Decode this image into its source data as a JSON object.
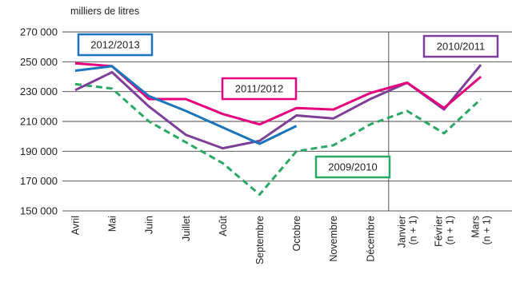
{
  "chart_data": {
    "type": "line",
    "ylabel": "milliers de litres",
    "ylim": [
      150000,
      270000
    ],
    "yticks": [
      "270 000",
      "250 000",
      "230 000",
      "210 000",
      "190 000",
      "170 000",
      "150 000"
    ],
    "categories": [
      "Avril",
      "Mai",
      "Juin",
      "Juillet",
      "Août",
      "Septembre",
      "Octobre",
      "Novembre",
      "Décembre",
      "Janvier (n + 1)",
      "Février (n + 1)",
      "Mars (n + 1)"
    ],
    "category_lines": [
      [
        "Avril"
      ],
      [
        "Mai"
      ],
      [
        "Juin"
      ],
      [
        "Juillet"
      ],
      [
        "Août"
      ],
      [
        "Septembre"
      ],
      [
        "Octobre"
      ],
      [
        "Novembre"
      ],
      [
        "Décembre"
      ],
      [
        "Janvier",
        "(n + 1)"
      ],
      [
        "Février",
        "(n + 1)"
      ],
      [
        "Mars",
        "(n + 1)"
      ]
    ],
    "series": [
      {
        "name": "2012/2013",
        "color": "#1b75bc",
        "dashed": false,
        "values": [
          244000,
          247000,
          227000,
          217000,
          206000,
          195000,
          207000,
          null,
          null,
          null,
          null,
          null
        ]
      },
      {
        "name": "2011/2012",
        "color": "#e6007e",
        "dashed": false,
        "values": [
          249000,
          247000,
          225000,
          225000,
          215000,
          208000,
          219000,
          218000,
          229000,
          236000,
          219000,
          240000
        ]
      },
      {
        "name": "2010/2011",
        "color": "#7d3f98",
        "dashed": false,
        "values": [
          231000,
          243000,
          220000,
          201000,
          192000,
          197000,
          214000,
          212000,
          225000,
          236000,
          218000,
          248000
        ]
      },
      {
        "name": "2009/2010",
        "color": "#2aa864",
        "dashed": true,
        "values": [
          235000,
          232000,
          210000,
          196000,
          182000,
          161000,
          190000,
          194000,
          208000,
          217000,
          202000,
          225000
        ]
      }
    ]
  }
}
